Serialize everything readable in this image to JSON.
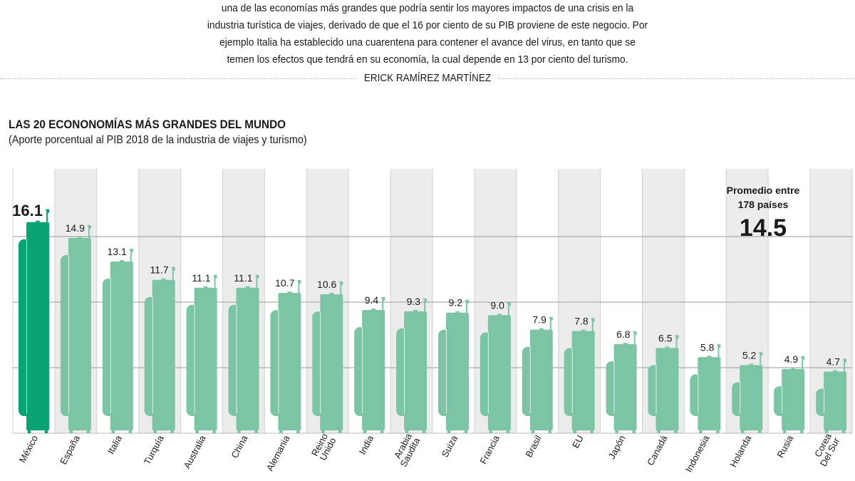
{
  "article": {
    "lines": [
      "una de las economías más grandes que podría sentir los mayores impactos de una crisis en la",
      "industria turística de viajes, derivado de que el 16 por ciento de su PIB proviene de este negocio. Por",
      "ejemplo Italia ha establecido una cuarentena para contener el avance del virus, en tanto que se",
      "temen los efectos que tendrá en su economía, la cual depende en 13 por ciento del turismo."
    ],
    "byline": "ERICK RAMÍREZ MARTÍNEZ"
  },
  "chart_data": {
    "type": "bar",
    "title": "LAS 20 ECONONOMÍAS MÁS GRANDES DEL MUNDO",
    "subtitle": "(Aporte porcentual al PIB 2018 de la industria de viajes y turismo)",
    "categories": [
      "México",
      "España",
      "Italia",
      "Turquía",
      "Australia",
      "China",
      "Alemania",
      "Reino Unido",
      "India",
      "Arabia Saudita",
      "Suiza",
      "Francia",
      "Brasil",
      "EU",
      "Japón",
      "Canadá",
      "Indonesia",
      "Holanda",
      "Rusia",
      "Corea Del Sur"
    ],
    "values": [
      16.1,
      14.9,
      13.1,
      11.7,
      11.1,
      11.1,
      10.7,
      10.6,
      9.4,
      9.3,
      9.2,
      9.0,
      7.9,
      7.8,
      6.8,
      6.5,
      5.8,
      5.2,
      4.9,
      4.7
    ],
    "value_labels": [
      "16.1",
      "14.9",
      "13.1",
      "11.7",
      "11.1",
      "11.1",
      "10.7",
      "10.6",
      "9.4",
      "9.3",
      "9.2",
      "9.0",
      "7.9",
      "7.8",
      "6.8",
      "6.5",
      "5.8",
      "5.2",
      "4.9",
      "4.7"
    ],
    "ylim": [
      0,
      20
    ],
    "grid": true,
    "highlight_index": 0,
    "annotation": {
      "label_line1": "Promedio entre",
      "label_line2": "178 países",
      "value": "14.5"
    },
    "colors": {
      "highlight": "#0aa373",
      "bar": "#7bc4a4",
      "shade": "#ececec",
      "grid": "#9a9a9a"
    }
  }
}
